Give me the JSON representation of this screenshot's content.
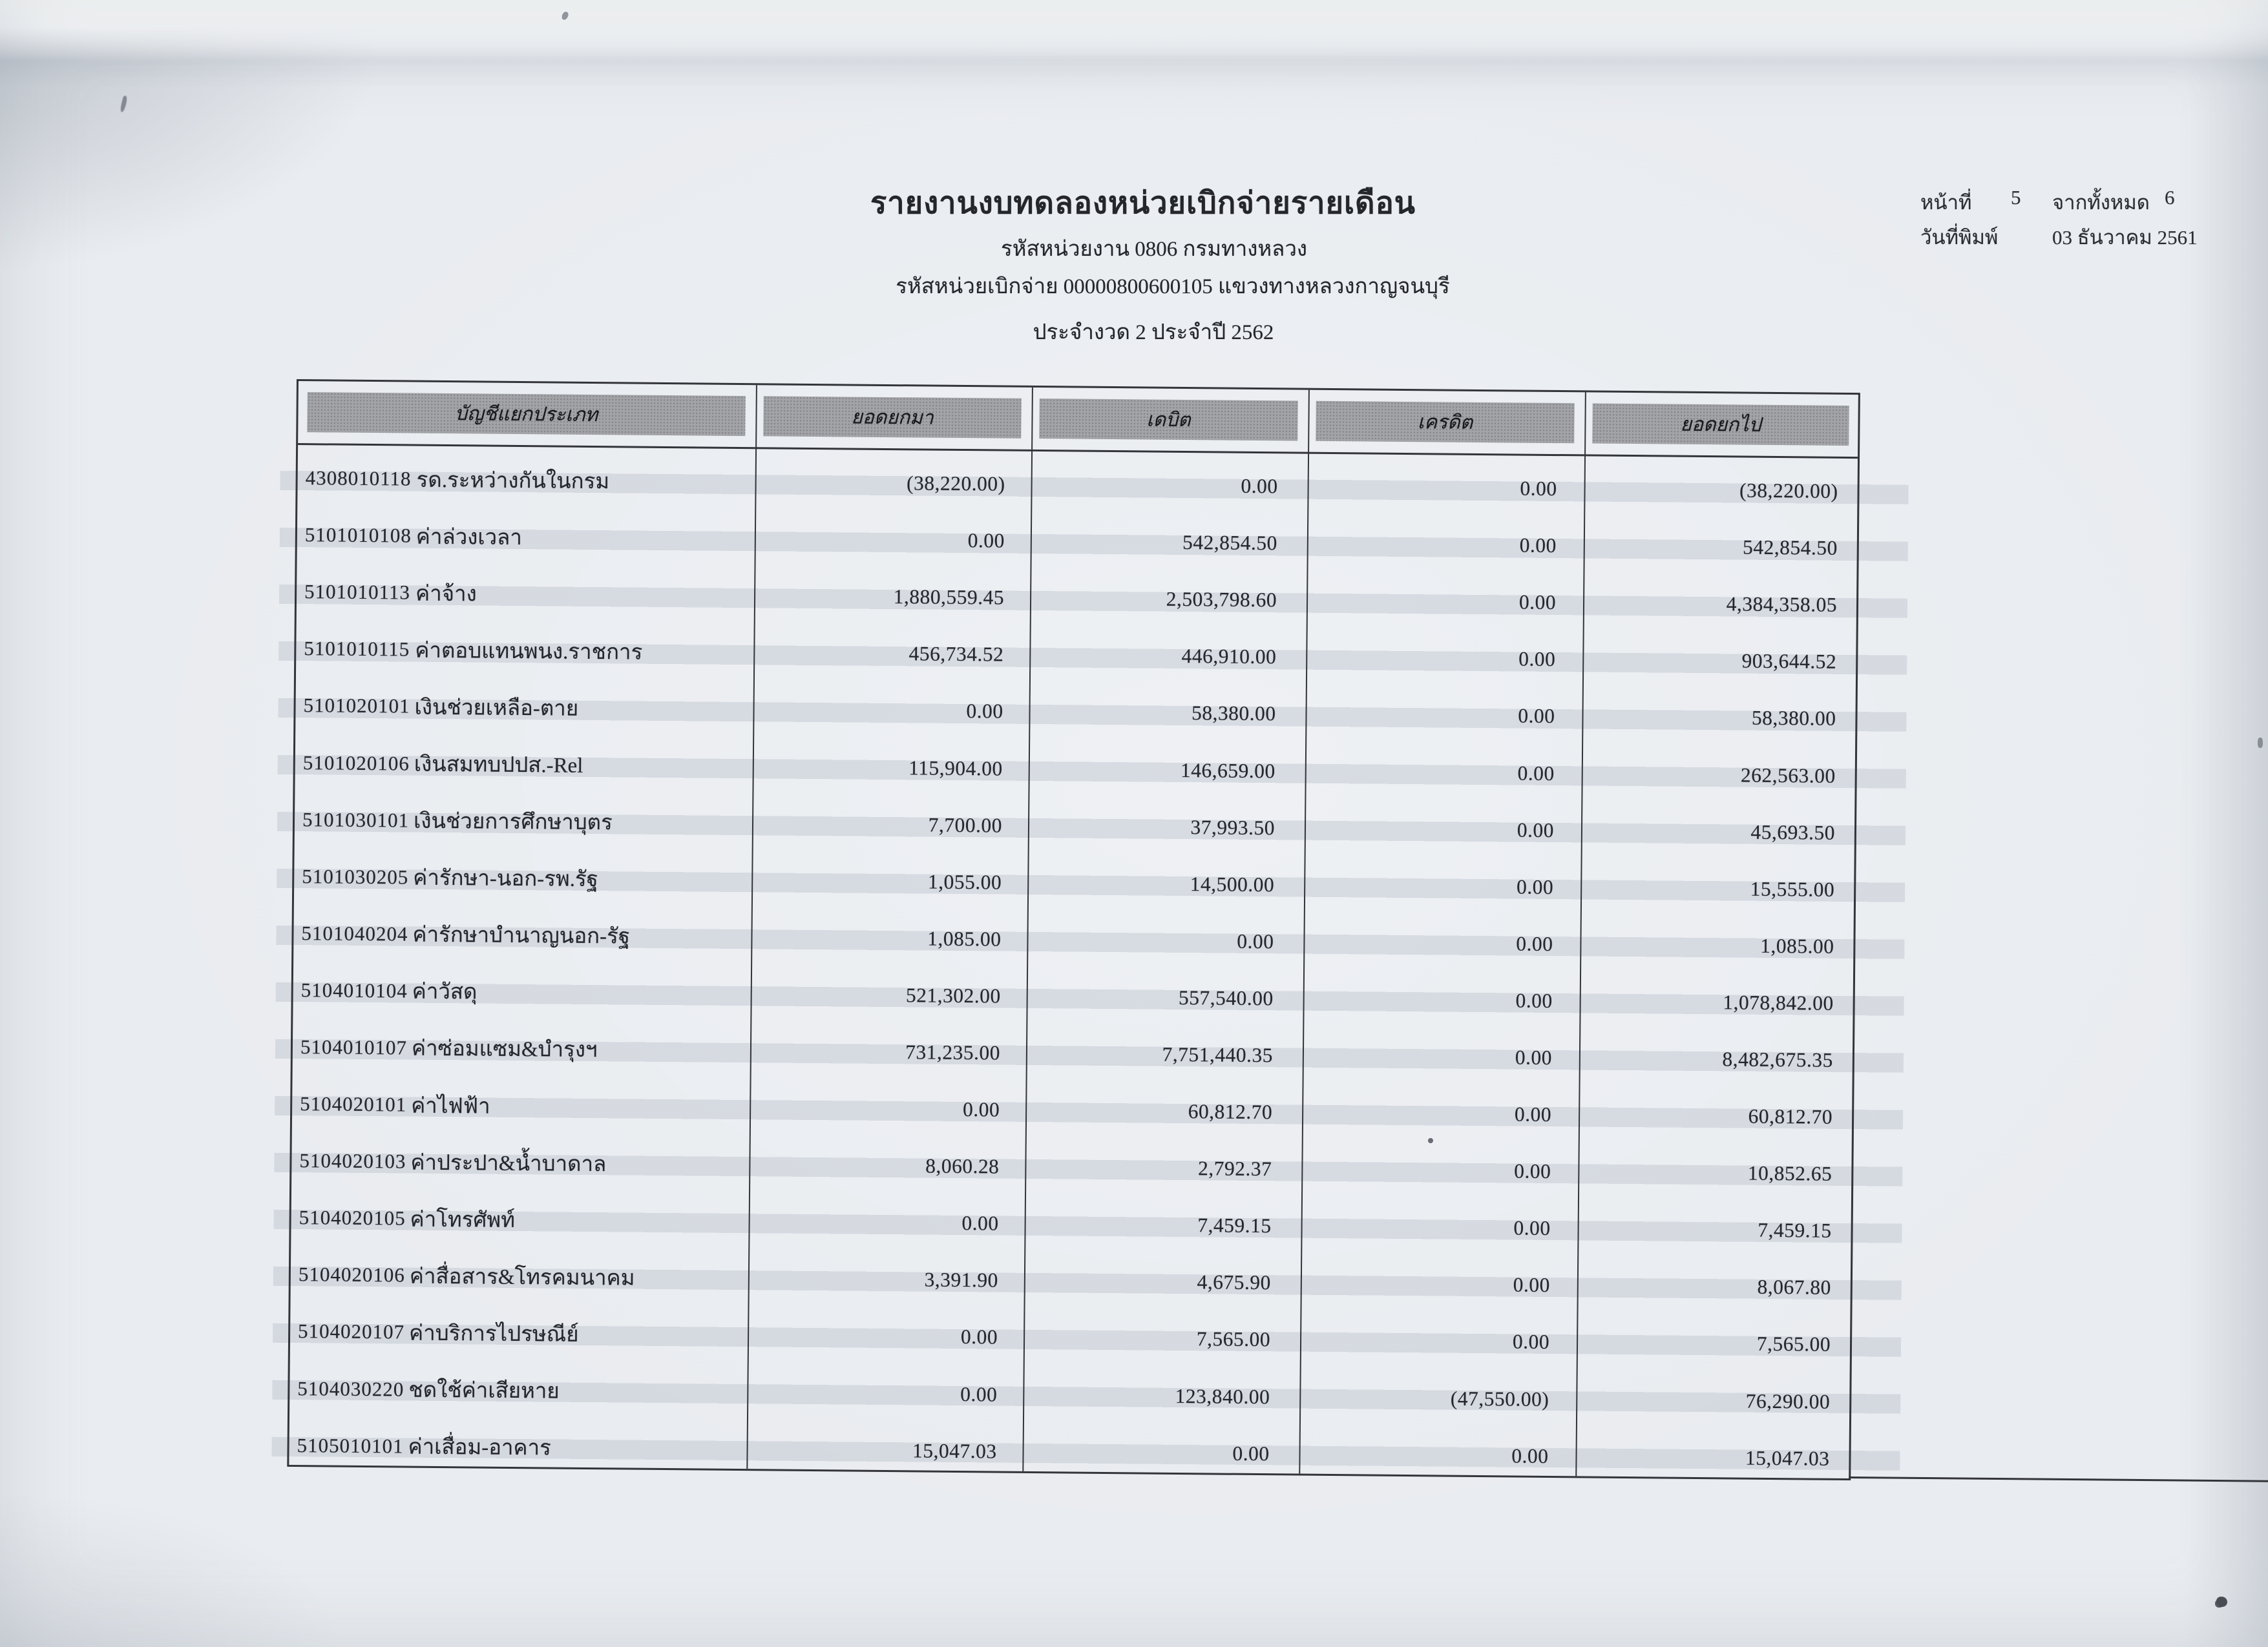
{
  "colors": {
    "paper": "#e9ecf0",
    "ink": "#24262c",
    "grid_line": "#33353a",
    "header_fill": "#a3a4a7"
  },
  "report_header": {
    "title": "รายงานงบทดลองหน่วยเบิกจ่ายรายเดือน",
    "agency_line": "รหัสหน่วยงาน 0806 กรมทางหลวง",
    "disbursement_unit_line": "รหัสหน่วยเบิกจ่าย 00000800600105 แขวงทางหลวงกาญจนบุรี",
    "period_line": "ประจำงวด 2 ประจำปี 2562"
  },
  "page_info": {
    "page_label": "หน้าที่",
    "page_number": "5",
    "of_label": "จากทั้งหมด",
    "total_pages": "6",
    "print_date_label": "วันที่พิมพ์",
    "print_date": "03 ธันวาคม 2561"
  },
  "table": {
    "headers": [
      "บัญชีแยกประเภท",
      "ยอดยกมา",
      "เดบิต",
      "เครดิต",
      "ยอดยกไป"
    ],
    "rows": [
      {
        "code": "4308010118",
        "name": "รด.ระหว่างกันในกรม",
        "brought_forward": "(38,220.00)",
        "debit": "0.00",
        "credit": "0.00",
        "carried_forward": "(38,220.00)"
      },
      {
        "code": "5101010108",
        "name": "ค่าล่วงเวลา",
        "brought_forward": "0.00",
        "debit": "542,854.50",
        "credit": "0.00",
        "carried_forward": "542,854.50"
      },
      {
        "code": "5101010113",
        "name": "ค่าจ้าง",
        "brought_forward": "1,880,559.45",
        "debit": "2,503,798.60",
        "credit": "0.00",
        "carried_forward": "4,384,358.05"
      },
      {
        "code": "5101010115",
        "name": "ค่าตอบแทนพนง.ราชการ",
        "brought_forward": "456,734.52",
        "debit": "446,910.00",
        "credit": "0.00",
        "carried_forward": "903,644.52"
      },
      {
        "code": "5101020101",
        "name": "เงินช่วยเหลือ-ตาย",
        "brought_forward": "0.00",
        "debit": "58,380.00",
        "credit": "0.00",
        "carried_forward": "58,380.00"
      },
      {
        "code": "5101020106",
        "name": "เงินสมทบปปส.-Rel",
        "brought_forward": "115,904.00",
        "debit": "146,659.00",
        "credit": "0.00",
        "carried_forward": "262,563.00"
      },
      {
        "code": "5101030101",
        "name": "เงินช่วยการศึกษาบุตร",
        "brought_forward": "7,700.00",
        "debit": "37,993.50",
        "credit": "0.00",
        "carried_forward": "45,693.50"
      },
      {
        "code": "5101030205",
        "name": "ค่ารักษา-นอก-รพ.รัฐ",
        "brought_forward": "1,055.00",
        "debit": "14,500.00",
        "credit": "0.00",
        "carried_forward": "15,555.00"
      },
      {
        "code": "5101040204",
        "name": "ค่ารักษาบำนาญนอก-รัฐ",
        "brought_forward": "1,085.00",
        "debit": "0.00",
        "credit": "0.00",
        "carried_forward": "1,085.00"
      },
      {
        "code": "5104010104",
        "name": "ค่าวัสดุ",
        "brought_forward": "521,302.00",
        "debit": "557,540.00",
        "credit": "0.00",
        "carried_forward": "1,078,842.00"
      },
      {
        "code": "5104010107",
        "name": "ค่าซ่อมแซม&บำรุงฯ",
        "brought_forward": "731,235.00",
        "debit": "7,751,440.35",
        "credit": "0.00",
        "carried_forward": "8,482,675.35"
      },
      {
        "code": "5104020101",
        "name": "ค่าไฟฟ้า",
        "brought_forward": "0.00",
        "debit": "60,812.70",
        "credit": "0.00",
        "carried_forward": "60,812.70"
      },
      {
        "code": "5104020103",
        "name": "ค่าประปา&น้ำบาดาล",
        "brought_forward": "8,060.28",
        "debit": "2,792.37",
        "credit": "0.00",
        "carried_forward": "10,852.65"
      },
      {
        "code": "5104020105",
        "name": "ค่าโทรศัพท์",
        "brought_forward": "0.00",
        "debit": "7,459.15",
        "credit": "0.00",
        "carried_forward": "7,459.15"
      },
      {
        "code": "5104020106",
        "name": "ค่าสื่อสาร&โทรคมนาคม",
        "brought_forward": "3,391.90",
        "debit": "4,675.90",
        "credit": "0.00",
        "carried_forward": "8,067.80"
      },
      {
        "code": "5104020107",
        "name": "ค่าบริการไปรษณีย์",
        "brought_forward": "0.00",
        "debit": "7,565.00",
        "credit": "0.00",
        "carried_forward": "7,565.00"
      },
      {
        "code": "5104030220",
        "name": "ชดใช้ค่าเสียหาย",
        "brought_forward": "0.00",
        "debit": "123,840.00",
        "credit": "(47,550.00)",
        "carried_forward": "76,290.00"
      },
      {
        "code": "5105010101",
        "name": "ค่าเสื่อม-อาคาร",
        "brought_forward": "15,047.03",
        "debit": "0.00",
        "credit": "0.00",
        "carried_forward": "15,047.03"
      }
    ]
  }
}
